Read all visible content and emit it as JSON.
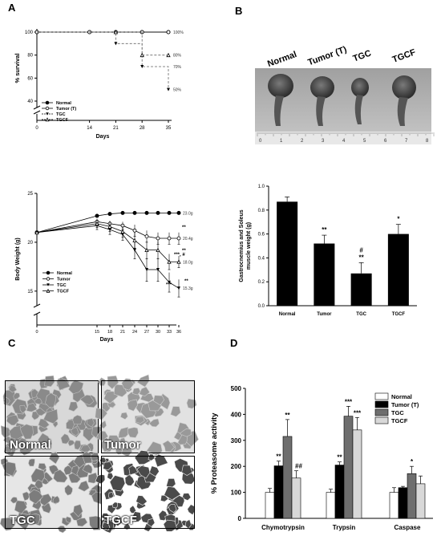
{
  "panels": {
    "a": "A",
    "b": "B",
    "c": "C",
    "d": "D"
  },
  "photo_b": {
    "labels": [
      "Normal",
      "Tumor (T)",
      "TGC",
      "TGCF"
    ],
    "ruler_digits": [
      "0",
      "1",
      "2",
      "3",
      "4",
      "5",
      "6",
      "7",
      "8"
    ]
  },
  "photo_c": {
    "labels": [
      "Normal",
      "Tumor",
      "TGC",
      "TGCF"
    ]
  },
  "chart_data": [
    {
      "id": "survival",
      "type": "line",
      "xlabel": "Days",
      "ylabel": "% survival",
      "x_ticks": [
        0,
        14,
        21,
        28,
        35
      ],
      "y_ticks": [
        40,
        60,
        80,
        100
      ],
      "xlim": [
        0,
        35
      ],
      "ylim": [
        40,
        100
      ],
      "axis_break": true,
      "legend": [
        "Normal",
        "Tumor (T)",
        "TGC",
        "TGCF"
      ],
      "series": [
        {
          "name": "Normal",
          "marker": "circle-filled",
          "dash": "solid",
          "points": [
            [
              0,
              100
            ],
            [
              14,
              100
            ],
            [
              21,
              100
            ],
            [
              28,
              100
            ],
            [
              35,
              100
            ]
          ]
        },
        {
          "name": "Tumor (T)",
          "marker": "circle-open",
          "dash": "solid",
          "points": [
            [
              0,
              100
            ],
            [
              14,
              100
            ],
            [
              21,
              100
            ],
            [
              28,
              100
            ],
            [
              35,
              100
            ]
          ]
        },
        {
          "name": "TGC",
          "marker": "triangle-down",
          "dash": "dashed",
          "step": true,
          "points": [
            [
              0,
              100
            ],
            [
              14,
              100
            ],
            [
              21,
              90
            ],
            [
              28,
              70
            ],
            [
              35,
              50
            ]
          ]
        },
        {
          "name": "TGCF",
          "marker": "triangle-up-open",
          "dash": "dashed",
          "step": true,
          "points": [
            [
              0,
              100
            ],
            [
              14,
              100
            ],
            [
              21,
              100
            ],
            [
              28,
              80
            ],
            [
              35,
              80
            ]
          ]
        }
      ],
      "end_labels": [
        {
          "text": "100%",
          "y": 100
        },
        {
          "text": "80%",
          "y": 80
        },
        {
          "text": "70%",
          "y": 70
        },
        {
          "text": "50%",
          "y": 50
        }
      ]
    },
    {
      "id": "body_weight",
      "type": "line",
      "xlabel": "Days",
      "ylabel": "Body Weight (g)",
      "x_ticks": [
        0,
        15,
        18,
        21,
        24,
        27,
        30,
        33,
        36
      ],
      "y_ticks": [
        15,
        20,
        25
      ],
      "ylim": [
        13,
        25
      ],
      "axis_break": true,
      "legend": [
        "Normal",
        "Tumor",
        "TGC",
        "TGCF"
      ],
      "series": [
        {
          "name": "Normal",
          "marker": "circle-filled",
          "x": [
            0,
            15,
            18,
            21,
            24,
            27,
            30,
            33,
            36
          ],
          "y": [
            21.0,
            22.7,
            22.9,
            23.0,
            23.0,
            23.0,
            23.0,
            23.0,
            23.0
          ],
          "err": [
            0,
            0,
            0,
            0,
            0,
            0,
            0,
            0,
            0
          ]
        },
        {
          "name": "Tumor",
          "marker": "circle-open",
          "x": [
            0,
            15,
            18,
            21,
            24,
            27,
            30,
            33,
            36
          ],
          "y": [
            21.0,
            22.1,
            21.9,
            21.7,
            21.2,
            20.6,
            20.4,
            20.4,
            20.4
          ],
          "err": [
            0,
            0.3,
            0.3,
            0.4,
            0.6,
            0.6,
            0.6,
            0.6,
            0.6
          ]
        },
        {
          "name": "TGC",
          "marker": "triangle-down",
          "x": [
            0,
            15,
            18,
            21,
            24,
            27,
            30,
            33,
            36
          ],
          "y": [
            21.0,
            21.7,
            21.3,
            20.8,
            19.2,
            17.2,
            17.2,
            15.9,
            15.3
          ],
          "err": [
            0,
            0.4,
            0.5,
            0.6,
            0.9,
            1.2,
            1.2,
            1.0,
            0.9
          ]
        },
        {
          "name": "TGCF",
          "marker": "triangle-up-open",
          "x": [
            0,
            15,
            18,
            21,
            24,
            27,
            30,
            33,
            36
          ],
          "y": [
            21.0,
            21.9,
            21.6,
            21.1,
            20.2,
            19.2,
            19.2,
            18.0,
            18.0
          ],
          "err": [
            0,
            0.4,
            0.5,
            0.6,
            0.8,
            0.9,
            0.9,
            0.8,
            0.6
          ]
        }
      ],
      "end_labels": [
        {
          "text": "23.0g",
          "y": 23.0
        },
        {
          "text": "20.4g",
          "y": 20.4
        },
        {
          "text": "18.0g",
          "y": 18.0
        },
        {
          "text": "15.3g",
          "y": 15.3
        }
      ],
      "annotations": [
        {
          "text": "**",
          "x": 36,
          "y": 21.4
        },
        {
          "text": "***, #",
          "x": 34.2,
          "y": 18.6
        },
        {
          "text": "**",
          "x": 36,
          "y": 19.0
        },
        {
          "text": "***",
          "x": 33,
          "y": 15.5
        },
        {
          "text": "**",
          "x": 36.8,
          "y": 15.9
        }
      ]
    },
    {
      "id": "muscle_weight",
      "type": "bar",
      "ylabel": "Gastrocnemius and Soleus muscle weight (g)",
      "ylabel_lines": [
        "Gastrocnemius and Soleus",
        "muscle weight (g)"
      ],
      "categories": [
        "Normal",
        "Tumor",
        "TGC",
        "TGCF"
      ],
      "values": [
        0.87,
        0.52,
        0.27,
        0.6
      ],
      "errors": [
        0.04,
        0.07,
        0.09,
        0.08
      ],
      "ylim": [
        0,
        1.0
      ],
      "y_ticks": [
        "0.0",
        "0.2",
        "0.4",
        "0.6",
        "0.8",
        "1.0"
      ],
      "annotations": [
        "",
        "**",
        "#\n**",
        "*"
      ],
      "bar_color": "#000000"
    },
    {
      "id": "proteasome",
      "type": "bar",
      "ylabel": "% Proteasome activity",
      "categories": [
        "Chymotrypsin",
        "Trypsin",
        "Caspase"
      ],
      "ylim": [
        0,
        500
      ],
      "y_ticks": [
        0,
        100,
        200,
        300,
        400,
        500
      ],
      "legend": [
        "Normal",
        "Tumor (T)",
        "TGC",
        "TGCF"
      ],
      "series": [
        {
          "name": "Normal",
          "color": "#ffffff",
          "values": [
            100,
            100,
            100
          ],
          "errors": [
            15,
            12,
            18
          ]
        },
        {
          "name": "Tumor (T)",
          "color": "#000000",
          "values": [
            202,
            205,
            118
          ],
          "errors": [
            18,
            12,
            5
          ]
        },
        {
          "name": "TGC",
          "color": "#6e6e6e",
          "values": [
            315,
            393,
            172
          ],
          "errors": [
            65,
            38,
            28
          ]
        },
        {
          "name": "TGCF",
          "color": "#d8d8d8",
          "values": [
            155,
            340,
            133
          ],
          "errors": [
            28,
            48,
            30
          ]
        }
      ],
      "annotations": [
        [
          "",
          "**",
          "**",
          "##"
        ],
        [
          "",
          "**",
          "***",
          "***"
        ],
        [
          "",
          "",
          "*",
          ""
        ]
      ]
    }
  ]
}
